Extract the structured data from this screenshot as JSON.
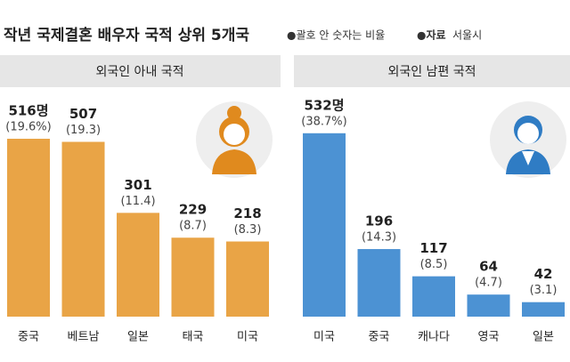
{
  "title": "작년 국제결혼 배우자 국적 상위 5개국",
  "note": "●괄호 안 숫자는 비율",
  "source": {
    "label": "●자료",
    "value": "서울시"
  },
  "chart_data": [
    {
      "type": "bar",
      "title": "외국인 아내 국적",
      "color": "#e9a446",
      "categories": [
        "중국",
        "베트남",
        "일본",
        "태국",
        "미국"
      ],
      "values": [
        516,
        507,
        301,
        229,
        218
      ],
      "value_labels": [
        "516명",
        "507",
        "301",
        "229",
        "218"
      ],
      "share_labels": [
        "(19.6%)",
        "(19.3)",
        "(11.4)",
        "(8.7)",
        "(8.3)"
      ]
    },
    {
      "type": "bar",
      "title": "외국인 남편 국적",
      "color": "#4c92d3",
      "categories": [
        "미국",
        "중국",
        "캐나다",
        "영국",
        "일본"
      ],
      "values": [
        532,
        196,
        117,
        64,
        42
      ],
      "value_labels": [
        "532명",
        "196",
        "117",
        "64",
        "42"
      ],
      "share_labels": [
        "(38.7%)",
        "(14.3)",
        "(8.5)",
        "(4.7)",
        "(3.1)"
      ]
    }
  ]
}
